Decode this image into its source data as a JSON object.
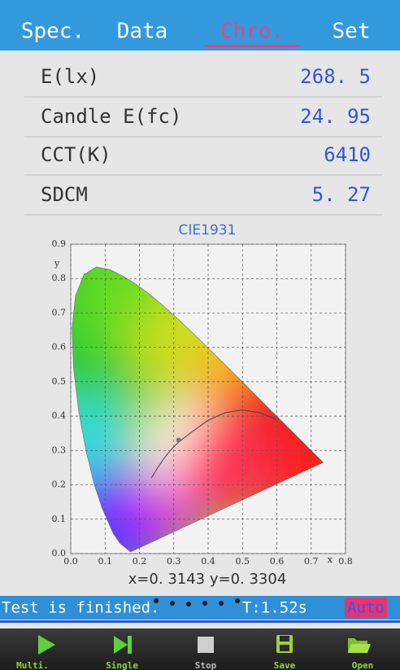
{
  "tabs": [
    "Spec.",
    "Data",
    "Chro.",
    "Set"
  ],
  "active_tab": 2,
  "measurements": [
    {
      "label": "E(lx)",
      "value": "268. 5"
    },
    {
      "label": "Candle E(fc)",
      "value": "24. 95"
    },
    {
      "label": "CCT(K)",
      "value": "6410"
    },
    {
      "label": "SDCM",
      "value": "5. 27"
    }
  ],
  "chart": {
    "title": "CIE1931",
    "x_label": "x",
    "y_label": "y",
    "xlim": [
      0,
      0.8
    ],
    "ylim": [
      0,
      0.9
    ],
    "xticks": [
      {
        "value": 0,
        "label": "0.0"
      },
      0.1,
      0.2,
      0.3,
      0.4,
      0.5,
      0.6,
      0.7,
      0.8
    ],
    "yticks": [
      {
        "value": 0,
        "label": "0.0"
      },
      0.1,
      0.2,
      0.3,
      0.4,
      0.5,
      0.6,
      0.7,
      0.8,
      0.9
    ],
    "point": {
      "x": 0.3143,
      "y": 0.3304
    },
    "point_label": "x=0. 3143  y=0. 3304"
  },
  "status": {
    "message": "Test is finished.",
    "time": "T:1.52s",
    "mode": "Auto"
  },
  "toolbar": [
    "Multi.",
    "Single",
    "Stop",
    "Save",
    "Open"
  ]
}
